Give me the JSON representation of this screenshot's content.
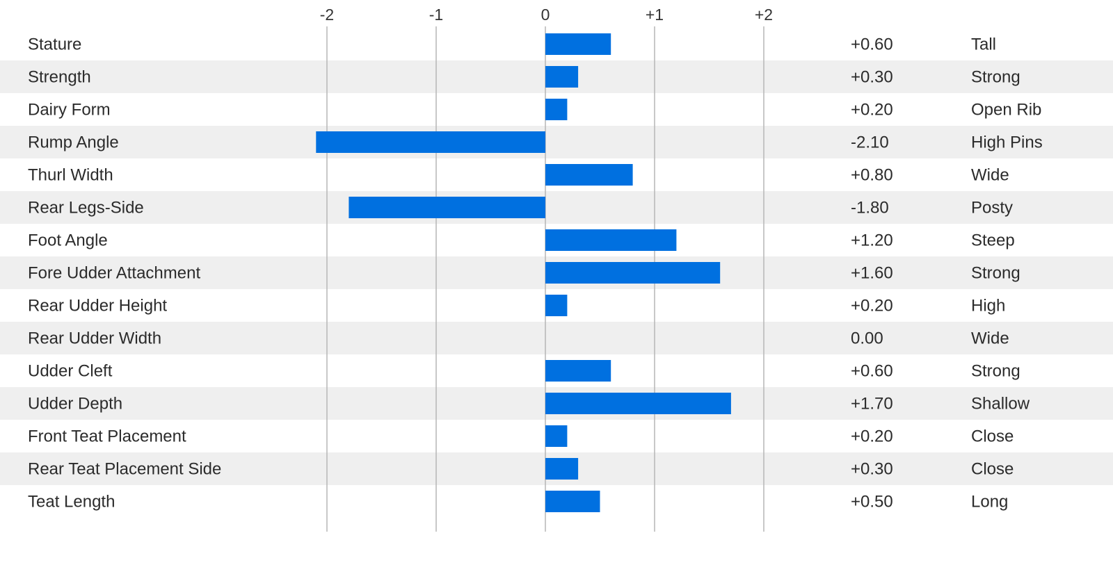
{
  "colors": {
    "bar": "#0070e0",
    "stripe": "#efefef",
    "gridline": "#b5b5b5",
    "text": "#2b2b2b"
  },
  "chart_data": {
    "type": "bar",
    "orientation": "horizontal",
    "categories": [
      "Stature",
      "Strength",
      "Dairy Form",
      "Rump Angle",
      "Thurl Width",
      "Rear Legs-Side",
      "Foot Angle",
      "Fore Udder Attachment",
      "Rear Udder Height",
      "Rear Udder Width",
      "Udder Cleft",
      "Udder Depth",
      "Front Teat Placement",
      "Rear Teat Placement Side",
      "Teat Length"
    ],
    "values": [
      0.6,
      0.3,
      0.2,
      -2.1,
      0.8,
      -1.8,
      1.2,
      1.6,
      0.2,
      0.0,
      0.6,
      1.7,
      0.2,
      0.3,
      0.5
    ],
    "value_labels": [
      "+0.60",
      "+0.30",
      "+0.20",
      "-2.10",
      "+0.80",
      "-1.80",
      "+1.20",
      "+1.60",
      "+0.20",
      "0.00",
      "+0.60",
      "+1.70",
      "+0.20",
      "+0.30",
      "+0.50"
    ],
    "descriptors": [
      "Tall",
      "Strong",
      "Open Rib",
      "High Pins",
      "Wide",
      "Posty",
      "Steep",
      "Strong",
      "High",
      "Wide",
      "Strong",
      "Shallow",
      "Close",
      "Close",
      "Long"
    ],
    "x_ticks": [
      -2,
      -1,
      0,
      1,
      2
    ],
    "x_tick_labels": [
      "-2",
      "-1",
      "0",
      "+1",
      "+2"
    ],
    "xlim": [
      -2,
      2
    ],
    "grid": true,
    "alternating_row_shading": true,
    "title": "",
    "xlabel": "",
    "ylabel": ""
  }
}
